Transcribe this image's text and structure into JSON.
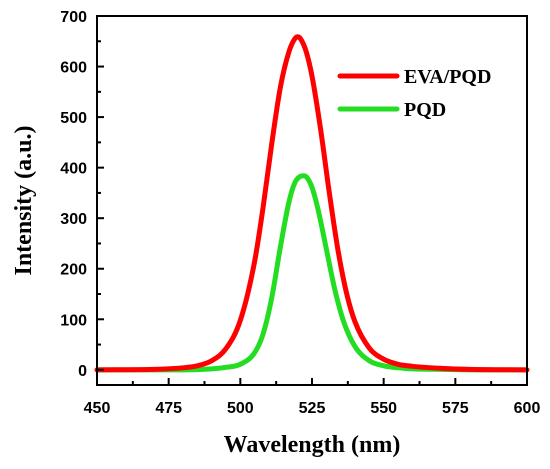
{
  "chart_data": {
    "type": "line",
    "xlabel": "Wavelength (nm)",
    "ylabel": "Intensity (a.u.)",
    "xlim": [
      450,
      600
    ],
    "ylim": [
      -30,
      700
    ],
    "xticks": [
      450,
      475,
      500,
      525,
      550,
      575,
      600
    ],
    "yticks": [
      0,
      100,
      200,
      300,
      400,
      500,
      600,
      700
    ],
    "grid": false,
    "legend_position": "top-right",
    "series": [
      {
        "name": "EVA/PQD",
        "color": "#ff0000",
        "x": [
          450,
          470,
          480,
          485,
          490,
          495,
          500,
          505,
          508,
          511,
          514,
          517,
          519,
          520,
          521,
          523,
          525,
          528,
          531,
          534,
          537,
          540,
          545,
          550,
          555,
          560,
          570,
          580,
          600
        ],
        "y": [
          0,
          1,
          4,
          8,
          18,
          42,
          98,
          215,
          324,
          449,
          560,
          630,
          655,
          659,
          655,
          629,
          581,
          476,
          352,
          239,
          153,
          95,
          43,
          21,
          11,
          7,
          3,
          1,
          0
        ]
      },
      {
        "name": "PQD",
        "color": "#22dd22",
        "x": [
          450,
          480,
          490,
          495,
          500,
          505,
          508,
          511,
          514,
          517,
          519,
          521,
          522,
          523,
          525,
          527,
          530,
          533,
          536,
          540,
          545,
          550,
          555,
          560,
          570,
          580,
          600
        ],
        "y": [
          0,
          0,
          2,
          5,
          11,
          34,
          72,
          144,
          244,
          333,
          370,
          383,
          384,
          382,
          361,
          320,
          239,
          158,
          96,
          46,
          18,
          8,
          4,
          2,
          1,
          0,
          0
        ]
      }
    ]
  }
}
